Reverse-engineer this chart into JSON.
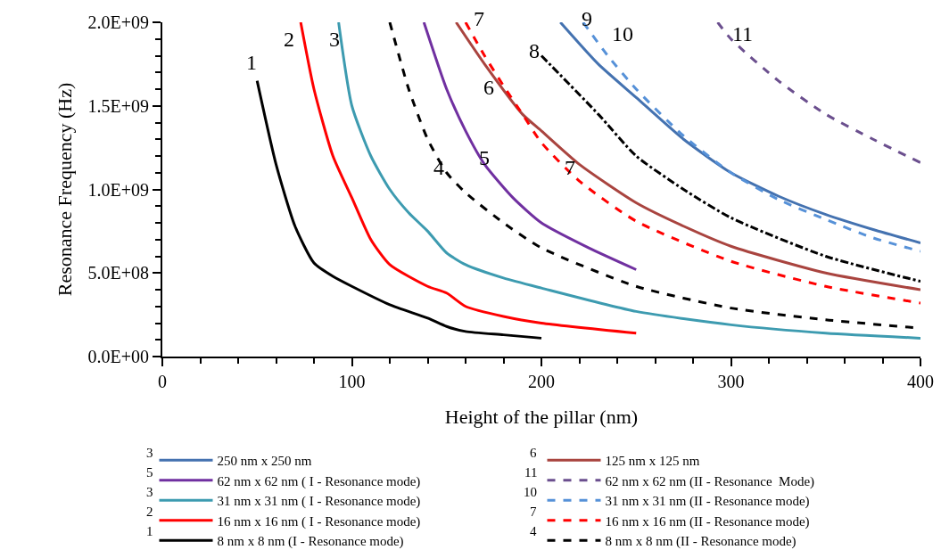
{
  "chart_data": {
    "type": "line",
    "xlabel": "Height of the pillar (nm)",
    "ylabel": "Resonance Frequency (Hz)",
    "xlim": [
      0,
      400
    ],
    "xticks": [
      0,
      100,
      200,
      300,
      400
    ],
    "ylim": [
      0,
      2000000000
    ],
    "yticks": [
      {
        "value": 0,
        "label": "0.0E+00"
      },
      {
        "value": 500000000,
        "label": "5.0E+08"
      },
      {
        "value": 1000000000,
        "label": "1.0E+09"
      },
      {
        "value": 1500000000,
        "label": "1.5E+09"
      },
      {
        "value": 2000000000,
        "label": "2.0E+09"
      }
    ],
    "legend": "bottom",
    "marker": "none",
    "series": [
      {
        "name": "250 nm x 250 nm",
        "color": "#4472b0",
        "line_style": "solid",
        "x": [
          210,
          230,
          250,
          275,
          300,
          325,
          350,
          375,
          400
        ],
        "values": [
          2000000000,
          1750000000,
          1550000000,
          1300000000,
          1100000000,
          960000000,
          850000000,
          760000000,
          680000000
        ]
      },
      {
        "name": "125 nm x 125 nm",
        "color": "#a9443f",
        "line_style": "solid",
        "x": [
          155,
          170,
          190,
          200,
          220,
          250,
          275,
          300,
          350,
          400
        ],
        "values": [
          2000000000,
          1750000000,
          1450000000,
          1350000000,
          1150000000,
          920000000,
          780000000,
          660000000,
          500000000,
          400000000
        ]
      },
      {
        "name": "62 nm x 62 nm ( I - Resonance mode)",
        "color": "#7030a0",
        "line_style": "solid",
        "x": [
          138,
          150,
          160,
          170,
          185,
          200,
          225,
          250
        ],
        "values": [
          2000000000,
          1600000000,
          1350000000,
          1150000000,
          950000000,
          800000000,
          650000000,
          520000000
        ]
      },
      {
        "name": "62 nm x 62 nm (II - Resonance  Mode)",
        "color": "#6b4f8e",
        "line_style": "dashed",
        "x": [
          293,
          300,
          325,
          350,
          375,
          400
        ],
        "values": [
          2000000000,
          1900000000,
          1650000000,
          1450000000,
          1300000000,
          1160000000
        ]
      },
      {
        "name": "31 nm x 31 nm ( I - Resonance mode)",
        "color": "#3d9bb0",
        "line_style": "solid",
        "x": [
          93,
          100,
          110,
          120,
          130,
          140,
          150,
          160,
          180,
          200,
          250,
          300,
          350,
          400
        ],
        "values": [
          2000000000,
          1500000000,
          1200000000,
          1000000000,
          860000000,
          750000000,
          620000000,
          550000000,
          470000000,
          410000000,
          270000000,
          190000000,
          140000000,
          110000000
        ]
      },
      {
        "name": "31 nm x 31 nm (II - Resonance mode)",
        "color": "#5691d8",
        "line_style": "dashed",
        "x": [
          222,
          235,
          250,
          275,
          300,
          325,
          350,
          375,
          400
        ],
        "values": [
          2000000000,
          1800000000,
          1600000000,
          1320000000,
          1100000000,
          940000000,
          820000000,
          710000000,
          630000000
        ]
      },
      {
        "name": "16 nm x 16 nm ( I - Resonance mode)",
        "color": "#ff0000",
        "line_style": "solid",
        "x": [
          73,
          80,
          90,
          100,
          110,
          120,
          140,
          150,
          160,
          180,
          200,
          250
        ],
        "values": [
          2000000000,
          1600000000,
          1200000000,
          950000000,
          700000000,
          550000000,
          420000000,
          380000000,
          300000000,
          240000000,
          200000000,
          140000000
        ]
      },
      {
        "name": "16 nm x 16 nm (II - Resonance mode)",
        "color": "#ff0000",
        "line_style": "dashed",
        "x": [
          160,
          170,
          180,
          190,
          200,
          220,
          250,
          300,
          350,
          400
        ],
        "values": [
          2000000000,
          1800000000,
          1620000000,
          1450000000,
          1280000000,
          1050000000,
          810000000,
          570000000,
          420000000,
          320000000
        ]
      },
      {
        "name": "8 nm x 8 nm (I - Resonance mode)",
        "color": "#000000",
        "line_style": "solid",
        "x": [
          50,
          60,
          70,
          80,
          90,
          100,
          120,
          140,
          150,
          160,
          180,
          200
        ],
        "values": [
          1650000000,
          1150000000,
          780000000,
          560000000,
          480000000,
          420000000,
          310000000,
          230000000,
          180000000,
          150000000,
          130000000,
          110000000
        ]
      },
      {
        "name": "8 nm x 8 nm (II - Resonance mode)",
        "color": "#000000",
        "line_style": "dashed",
        "x": [
          120,
          130,
          140,
          150,
          160,
          180,
          200,
          250,
          300,
          350,
          400
        ],
        "values": [
          2000000000,
          1600000000,
          1300000000,
          1100000000,
          980000000,
          800000000,
          650000000,
          420000000,
          290000000,
          220000000,
          170000000
        ]
      },
      {
        "color": "#000000",
        "line_style": "dashdot",
        "x": [
          200,
          230,
          250,
          275,
          300,
          350,
          400
        ],
        "values": [
          1800000000,
          1450000000,
          1200000000,
          1000000000,
          830000000,
          600000000,
          450000000
        ]
      }
    ],
    "annotations": [
      "1",
      "2",
      "3",
      "4",
      "5",
      "6",
      "7",
      "7",
      "8",
      "9",
      "10",
      "11",
      "3",
      "6",
      "5",
      "11",
      "3",
      "10",
      "2",
      "7",
      "1",
      "4"
    ]
  }
}
